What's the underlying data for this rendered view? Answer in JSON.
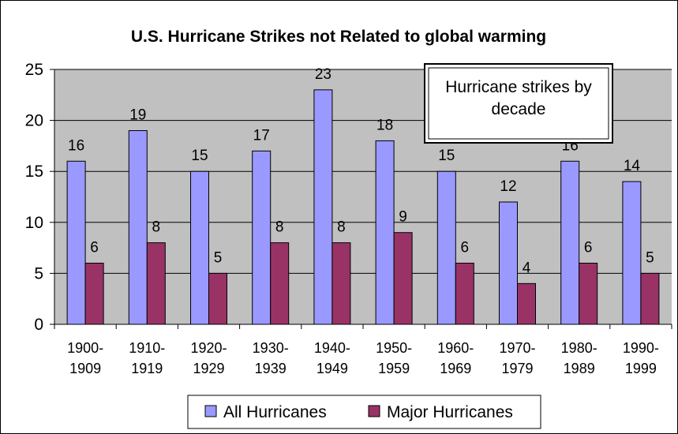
{
  "chart_data": {
    "type": "bar",
    "title": "U.S. Hurricane Strikes not Related to global warming",
    "annotation": "Hurricane strikes by decade",
    "categories": [
      [
        "1900-",
        "1909"
      ],
      [
        "1910-",
        "1919"
      ],
      [
        "1920-",
        "1929"
      ],
      [
        "1930-",
        "1939"
      ],
      [
        "1940-",
        "1949"
      ],
      [
        "1950-",
        "1959"
      ],
      [
        "1960-",
        "1969"
      ],
      [
        "1970-",
        "1979"
      ],
      [
        "1980-",
        "1989"
      ],
      [
        "1990-",
        "1999"
      ]
    ],
    "series": [
      {
        "name": "All Hurricanes",
        "values": [
          16,
          19,
          15,
          17,
          23,
          18,
          15,
          12,
          16,
          14
        ],
        "color": "#9999ff"
      },
      {
        "name": "Major Hurricanes",
        "values": [
          6,
          8,
          5,
          8,
          8,
          9,
          6,
          4,
          6,
          5
        ],
        "color": "#993366"
      }
    ],
    "ylim": [
      0,
      25
    ],
    "yticks": [
      0,
      5,
      10,
      15,
      20,
      25
    ],
    "grid": true,
    "plot_background": "#c0c0c0",
    "legend_position": "bottom",
    "data_labels": true
  }
}
